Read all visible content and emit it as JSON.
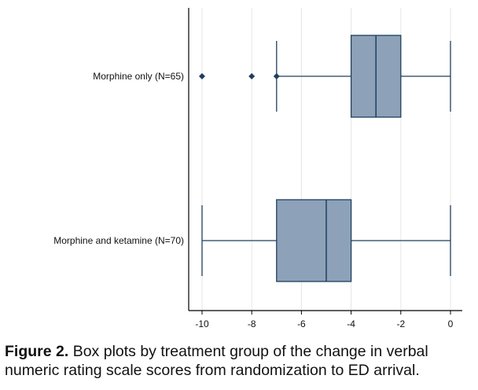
{
  "chart_data": {
    "type": "boxplot",
    "orientation": "horizontal",
    "xlim": [
      -10,
      0
    ],
    "xticks": [
      -10,
      -8,
      -6,
      -4,
      -2,
      0
    ],
    "grid": "vertical",
    "categories": [
      "Morphine only (N=65)",
      "Morphine and ketamine (N=70)"
    ],
    "boxes": [
      {
        "label": "Morphine only (N=65)",
        "whisker_low": -7,
        "q1": -4,
        "median": -3,
        "q3": -2,
        "whisker_high": 0,
        "outliers": [
          -10,
          -8
        ]
      },
      {
        "label": "Morphine and ketamine (N=70)",
        "whisker_low": -10,
        "q1": -7,
        "median": -5,
        "q3": -4,
        "whisker_high": 0,
        "outliers": []
      }
    ],
    "colors": {
      "box_fill": "#8da2b9",
      "box_stroke": "#1f3f5e",
      "grid": "#e6e6e6",
      "axis": "#000000"
    }
  },
  "caption": {
    "label": "Figure 2.",
    "text": " Box plots by treatment group of the change in verbal numeric rating scale scores from randomization to ED arrival."
  }
}
